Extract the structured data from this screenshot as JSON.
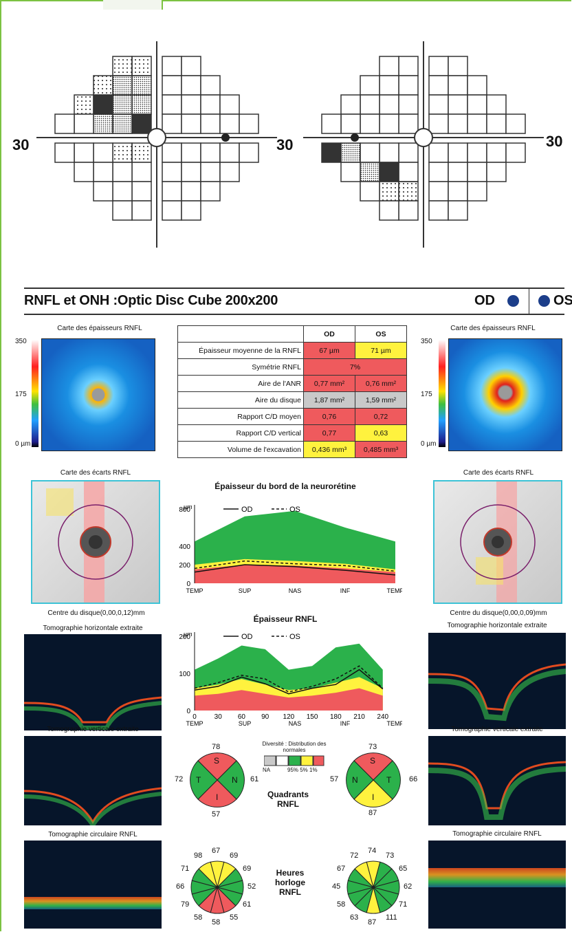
{
  "visual_fields": {
    "left_axis_label": "30",
    "right_axis_label": "30"
  },
  "report": {
    "title": "RNFL et ONH :Optic Disc Cube 200x200",
    "od": "OD",
    "os": "OS"
  },
  "thickness_map": {
    "title": "Carte des épaisseurs RNFL",
    "scale_top": "350",
    "scale_mid": "175",
    "scale_bottom": "0 µm"
  },
  "table": {
    "headers": [
      "OD",
      "OS"
    ],
    "rows": [
      {
        "label": "Épaisseur moyenne de la RNFL",
        "od": "67 µm",
        "os": "71 µm",
        "od_color": "#ef5a5d",
        "os_color": "#fff23e"
      },
      {
        "label": "Symétrie RNFL",
        "merged": "7%"
      },
      {
        "label": "Aire de l'ANR",
        "od": "0,77 mm²",
        "os": "0,76 mm²",
        "od_color": "#ef5a5d",
        "os_color": "#ef5a5d"
      },
      {
        "label": "Aire du disque",
        "od": "1,87 mm²",
        "os": "1,59 mm²",
        "od_color": "#c9c9c9",
        "os_color": "#c9c9c9"
      },
      {
        "label": "Rapport C/D moyen",
        "od": "0,76",
        "os": "0,72",
        "od_color": "#ef5a5d",
        "os_color": "#ef5a5d"
      },
      {
        "label": "Rapport C/D vertical",
        "od": "0,77",
        "os": "0,63",
        "od_color": "#ef5a5d",
        "os_color": "#fff23e"
      },
      {
        "label": "Volume de l'excavation",
        "od": "0,436 mm³",
        "os": "0,485 mm³",
        "od_color": "#fff23e",
        "os_color": "#ef5a5d"
      }
    ]
  },
  "deviation_map": {
    "title": "Carte des écarts RNFL",
    "od_center": "Centre du disque(0,00,0,12)mm",
    "os_center": "Centre du disque(0,00,0,09)mm"
  },
  "tomo": {
    "horizontal": "Tomographie horizontale extraite",
    "vertical": "Tomographie verticale extraite",
    "circular": "Tomographie circulaire RNFL"
  },
  "legend": {
    "title": "Diversité : Distribution des normales",
    "na": "NA",
    "pcts": "95%  5%  1%"
  },
  "quadrants": {
    "label": "Quadrants RNFL",
    "od": {
      "top": "78",
      "left": "72",
      "right": "61",
      "bottom": "57",
      "S": "S",
      "T": "T",
      "N": "N",
      "I": "I"
    },
    "os": {
      "top": "73",
      "left": "57",
      "right": "66",
      "bottom": "87",
      "S": "S",
      "T": "T",
      "N": "N",
      "I": "I"
    }
  },
  "clock": {
    "label": "Heures horloge RNFL",
    "od": [
      "67",
      "69",
      "69",
      "52",
      "61",
      "55",
      "58",
      "58",
      "79",
      "66",
      "71",
      "98"
    ],
    "os": [
      "74",
      "73",
      "65",
      "62",
      "71",
      "111",
      "87",
      "63",
      "58",
      "45",
      "67",
      "72"
    ]
  },
  "chart_data": [
    {
      "type": "area",
      "title": "Épaisseur du bord de la neurorétine",
      "ylabel": "µm",
      "ylim": [
        0,
        800
      ],
      "yticks": [
        "0",
        "200",
        "400",
        "800"
      ],
      "categories": [
        "TEMP",
        "SUP",
        "NAS",
        "INF",
        "TEMP"
      ],
      "series": [
        {
          "name": "OD",
          "values": [
            120,
            200,
            180,
            140,
            90
          ]
        },
        {
          "name": "OS",
          "values": [
            160,
            240,
            210,
            190,
            130
          ]
        }
      ],
      "bands": {
        "red": [
          150,
          200,
          190,
          160,
          120
        ],
        "yellow": [
          200,
          260,
          240,
          210,
          150
        ],
        "green": [
          450,
          720,
          780,
          600,
          450
        ]
      }
    },
    {
      "type": "area",
      "title": "Épaisseur RNFL",
      "ylabel": "µm",
      "ylim": [
        0,
        200
      ],
      "yticks": [
        "0",
        "100",
        "200"
      ],
      "x": [
        0,
        30,
        60,
        90,
        120,
        150,
        180,
        210,
        240
      ],
      "xticks": [
        "0",
        "30",
        "60",
        "90",
        "120",
        "150",
        "180",
        "210",
        "240"
      ],
      "xcats": [
        "TEMP",
        "SUP",
        "NAS",
        "INF",
        "TEMP"
      ],
      "series": [
        {
          "name": "OD",
          "values": [
            55,
            65,
            90,
            72,
            45,
            60,
            70,
            110,
            58
          ]
        },
        {
          "name": "OS",
          "values": [
            60,
            75,
            95,
            85,
            50,
            65,
            85,
            120,
            60
          ]
        }
      ]
    }
  ]
}
